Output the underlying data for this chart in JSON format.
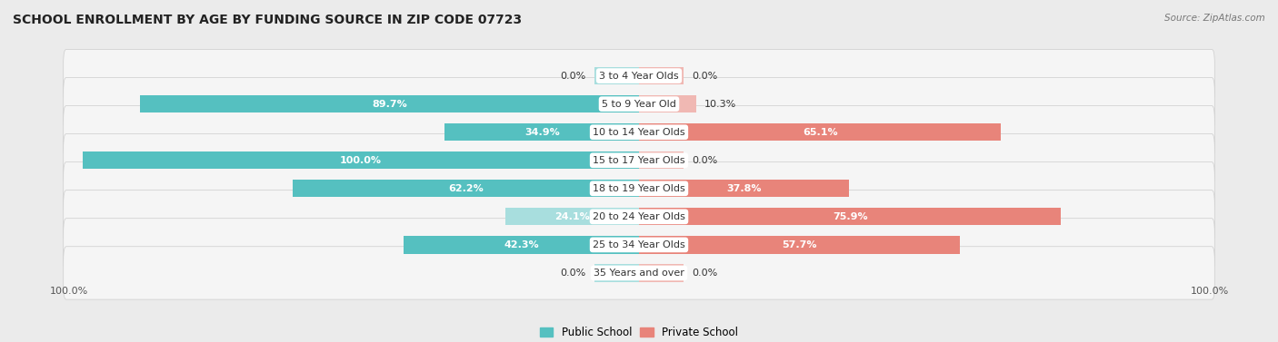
{
  "title": "School Enrollment by Age by Funding Source in Zip Code 07723",
  "source": "Source: ZipAtlas.com",
  "categories": [
    "3 to 4 Year Olds",
    "5 to 9 Year Old",
    "10 to 14 Year Olds",
    "15 to 17 Year Olds",
    "18 to 19 Year Olds",
    "20 to 24 Year Olds",
    "25 to 34 Year Olds",
    "35 Years and over"
  ],
  "public_values": [
    0.0,
    89.7,
    34.9,
    100.0,
    62.2,
    24.1,
    42.3,
    0.0
  ],
  "private_values": [
    0.0,
    10.3,
    65.1,
    0.0,
    37.8,
    75.9,
    57.7,
    0.0
  ],
  "public_color": "#55C0C0",
  "private_color": "#E8847A",
  "public_color_light": "#A8DEDE",
  "private_color_light": "#F0B8B3",
  "public_label": "Public School",
  "private_label": "Private School",
  "background_color": "#ebebeb",
  "row_bg_color": "#f5f5f5",
  "title_fontsize": 10,
  "label_fontsize": 8,
  "source_fontsize": 7.5,
  "axis_label_fontsize": 8,
  "xlim": 100,
  "bar_height": 0.62,
  "zero_bar_size": 8.0,
  "note_inside_threshold": 12
}
